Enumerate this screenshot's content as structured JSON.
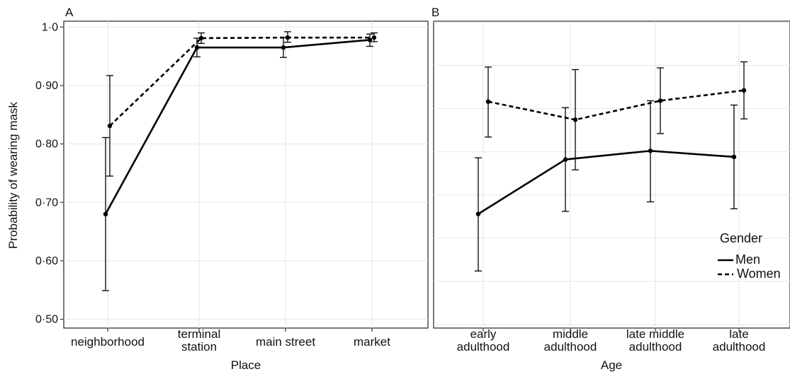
{
  "chart_data": [
    {
      "panel_label": "A",
      "type": "line",
      "xlabel": "Place",
      "ylabel": "Probability of wearing mask",
      "categories": [
        [
          "neighborhood"
        ],
        [
          "terminal",
          "station"
        ],
        [
          "main street"
        ],
        [
          "market"
        ]
      ],
      "y_ticks": [
        "0·50",
        "0·60",
        "0·70",
        "0·80",
        "0·90",
        "1·0"
      ],
      "y_tick_values": [
        0.5,
        0.6,
        0.7,
        0.8,
        0.9,
        1.0
      ],
      "ylim": [
        0.485,
        1.01
      ],
      "grid": true,
      "series": [
        {
          "name": "Men",
          "dash": "solid",
          "values": [
            0.68,
            0.965,
            0.965,
            0.978
          ],
          "ci_low": [
            0.549,
            0.949,
            0.948,
            0.967
          ],
          "ci_high": [
            0.811,
            0.981,
            0.982,
            0.988
          ]
        },
        {
          "name": "Women",
          "dash": "dashed",
          "values": [
            0.831,
            0.981,
            0.982,
            0.982
          ],
          "ci_low": [
            0.745,
            0.972,
            0.974,
            0.975
          ],
          "ci_high": [
            0.917,
            0.99,
            0.992,
            0.99
          ]
        }
      ]
    },
    {
      "panel_label": "B",
      "type": "line",
      "xlabel": "Age",
      "ylabel": "",
      "categories": [
        [
          "early",
          "adulthood"
        ],
        [
          "middle",
          "adulthood"
        ],
        [
          "late middle",
          "adulthood"
        ],
        [
          "late",
          "adulthood"
        ]
      ],
      "y_ticks": [],
      "y_tick_values": [],
      "ylim": [
        0.596,
        0.951
      ],
      "grid_values": [
        0.6,
        0.65,
        0.7,
        0.75,
        0.8,
        0.85,
        0.9,
        0.95
      ],
      "grid": true,
      "series": [
        {
          "name": "Men",
          "dash": "solid",
          "values": [
            0.728,
            0.791,
            0.801,
            0.794
          ],
          "ci_low": [
            0.662,
            0.731,
            0.742,
            0.734
          ],
          "ci_high": [
            0.793,
            0.851,
            0.859,
            0.854
          ]
        },
        {
          "name": "Women",
          "dash": "dashed",
          "values": [
            0.858,
            0.837,
            0.859,
            0.871
          ],
          "ci_low": [
            0.817,
            0.779,
            0.821,
            0.838
          ],
          "ci_high": [
            0.898,
            0.895,
            0.897,
            0.904
          ]
        }
      ]
    }
  ],
  "legend": {
    "title": "Gender",
    "placement": "bottom-right of panel B",
    "items": [
      {
        "label": "Men",
        "dash": "solid"
      },
      {
        "label": "Women",
        "dash": "dashed"
      }
    ]
  },
  "colors": {
    "line": "#000000",
    "grid": "#e6e6e6",
    "frame": "#333333",
    "background": "#ffffff"
  }
}
